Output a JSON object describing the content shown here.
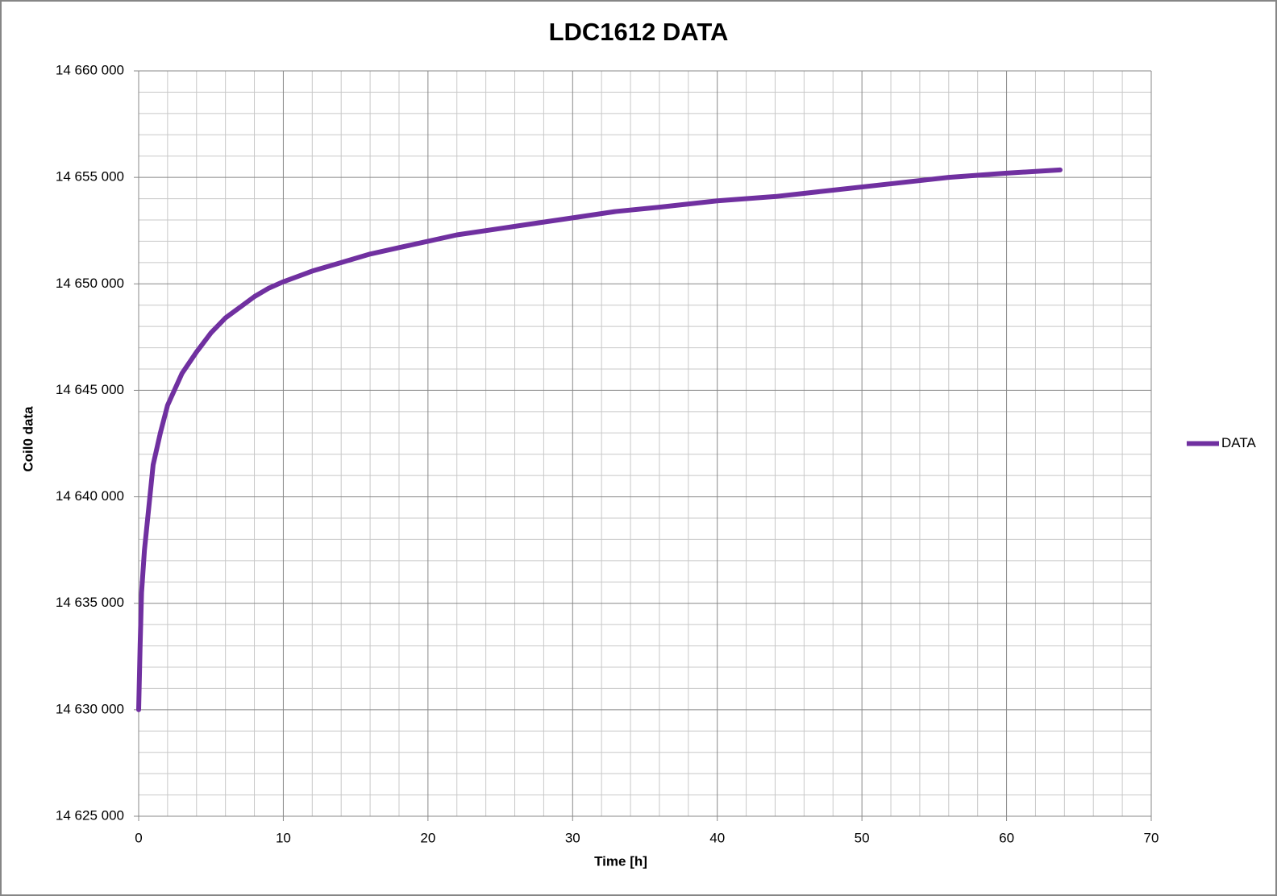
{
  "chart_data": {
    "type": "line",
    "title": "LDC1612 DATA",
    "x_label": "Time [h]",
    "y_label": "Coil0 data",
    "legend": "right",
    "grid": true,
    "xlim": [
      0,
      70
    ],
    "xticks": [
      0,
      10,
      20,
      30,
      40,
      50,
      60,
      70
    ],
    "xminorticks": [
      2,
      4,
      6,
      8,
      12,
      14,
      16,
      18,
      22,
      24,
      26,
      28,
      32,
      34,
      36,
      38,
      42,
      44,
      46,
      48,
      52,
      54,
      56,
      58,
      62,
      64,
      66,
      68
    ],
    "ylim": [
      14625000,
      14660000
    ],
    "yticks": [
      {
        "value": 14625000,
        "label": "14 625 000"
      },
      {
        "value": 14630000,
        "label": "14 630 000"
      },
      {
        "value": 14635000,
        "label": "14 635 000"
      },
      {
        "value": 14640000,
        "label": "14 640 000"
      },
      {
        "value": 14645000,
        "label": "14 645 000"
      },
      {
        "value": 14650000,
        "label": "14 650 000"
      },
      {
        "value": 14655000,
        "label": "14 655 000"
      },
      {
        "value": 14660000,
        "label": "14 660 000"
      }
    ],
    "yminorticks": [
      14626000,
      14627000,
      14628000,
      14629000,
      14631000,
      14632000,
      14633000,
      14634000,
      14636000,
      14637000,
      14638000,
      14639000,
      14641000,
      14642000,
      14643000,
      14644000,
      14646000,
      14647000,
      14648000,
      14649000,
      14651000,
      14652000,
      14653000,
      14654000,
      14656000,
      14657000,
      14658000,
      14659000
    ],
    "x": [
      0,
      0.1,
      0.2,
      0.4,
      0.7,
      1,
      1.5,
      2,
      3,
      4,
      5,
      6,
      7,
      8,
      9,
      10,
      12,
      14,
      16,
      18,
      20,
      22,
      25,
      28,
      30,
      33,
      36,
      40,
      44,
      48,
      52,
      56,
      60,
      63.7
    ],
    "series": [
      {
        "name": "DATA",
        "color": "#7030a0",
        "values": [
          14630000,
          14633000,
          14635500,
          14637500,
          14639500,
          14641500,
          14643000,
          14644300,
          14645800,
          14646800,
          14647700,
          14648400,
          14648900,
          14649400,
          14649800,
          14650100,
          14650600,
          14651000,
          14651400,
          14651700,
          14652000,
          14652300,
          14652600,
          14652900,
          14653100,
          14653400,
          14653600,
          14653900,
          14654100,
          14654400,
          14654700,
          14655000,
          14655200,
          14655350
        ]
      }
    ]
  }
}
